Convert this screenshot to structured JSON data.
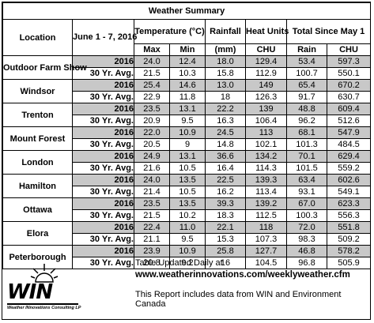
{
  "title": "Weather Summary",
  "headers": {
    "location": "Location",
    "period": "June 1 - 7, 2016",
    "temperature": "Temperature (°C)",
    "rainfall": "Rainfall",
    "heat_units": "Heat Units",
    "total_since": "Total Since May 1",
    "max": "Max",
    "min": "Min",
    "mm": "(mm)",
    "chu": "CHU",
    "rain": "Rain",
    "chu2": "CHU"
  },
  "rows": [
    {
      "location": "Outdoor Farm Show",
      "y2016": {
        "label": "2016",
        "max": "24.0",
        "min": "12.4",
        "rain": "18.0",
        "chu": "129.4",
        "train": "53.4",
        "tchu": "597.3"
      },
      "avg": {
        "label": "30 Yr. Avg.",
        "max": "21.5",
        "min": "10.3",
        "rain": "15.8",
        "chu": "112.9",
        "train": "100.7",
        "tchu": "550.1"
      }
    },
    {
      "location": "Windsor",
      "y2016": {
        "label": "2016",
        "max": "25.4",
        "min": "14.6",
        "rain": "13.0",
        "chu": "149",
        "train": "65.4",
        "tchu": "670.2"
      },
      "avg": {
        "label": "30 Yr. Avg.",
        "max": "22.9",
        "min": "11.8",
        "rain": "18",
        "chu": "126.3",
        "train": "91.7",
        "tchu": "630.7"
      }
    },
    {
      "location": "Trenton",
      "y2016": {
        "label": "2016",
        "max": "23.5",
        "min": "13.1",
        "rain": "22.2",
        "chu": "139",
        "train": "48.8",
        "tchu": "609.4"
      },
      "avg": {
        "label": "30 Yr. Avg.",
        "max": "20.9",
        "min": "9.5",
        "rain": "16.3",
        "chu": "106.4",
        "train": "96.2",
        "tchu": "512.6"
      }
    },
    {
      "location": "Mount Forest",
      "y2016": {
        "label": "2016",
        "max": "22.0",
        "min": "10.9",
        "rain": "24.5",
        "chu": "113",
        "train": "68.1",
        "tchu": "547.9"
      },
      "avg": {
        "label": "30 Yr. Avg.",
        "max": "20.5",
        "min": "9",
        "rain": "14.8",
        "chu": "102.1",
        "train": "101.3",
        "tchu": "484.5"
      }
    },
    {
      "location": "London",
      "y2016": {
        "label": "2016",
        "max": "24.9",
        "min": "13.1",
        "rain": "36.6",
        "chu": "134.2",
        "train": "70.1",
        "tchu": "629.4"
      },
      "avg": {
        "label": "30 Yr. Avg.",
        "max": "21.6",
        "min": "10.5",
        "rain": "16.4",
        "chu": "114.3",
        "train": "101.5",
        "tchu": "559.2"
      }
    },
    {
      "location": "Hamilton",
      "y2016": {
        "label": "2016",
        "max": "24.0",
        "min": "13.5",
        "rain": "22.5",
        "chu": "139.3",
        "train": "63.4",
        "tchu": "602.6"
      },
      "avg": {
        "label": "30 Yr. Avg.",
        "max": "21.4",
        "min": "10.5",
        "rain": "16.2",
        "chu": "113.4",
        "train": "93.1",
        "tchu": "549.1"
      }
    },
    {
      "location": "Ottawa",
      "y2016": {
        "label": "2016",
        "max": "23.5",
        "min": "13.5",
        "rain": "39.3",
        "chu": "139.2",
        "train": "67.0",
        "tchu": "623.3"
      },
      "avg": {
        "label": "30 Yr. Avg.",
        "max": "21.5",
        "min": "10.2",
        "rain": "18.3",
        "chu": "112.5",
        "train": "100.3",
        "tchu": "556.3"
      }
    },
    {
      "location": "Elora",
      "y2016": {
        "label": "2016",
        "max": "22.4",
        "min": "11.0",
        "rain": "22.1",
        "chu": "118",
        "train": "72.0",
        "tchu": "551.8"
      },
      "avg": {
        "label": "30 Yr. Avg.",
        "max": "21.1",
        "min": "9.5",
        "rain": "15.3",
        "chu": "107.3",
        "train": "98.3",
        "tchu": "509.2"
      }
    },
    {
      "location": "Peterborough",
      "y2016": {
        "label": "2016",
        "max": "23.9",
        "min": "10.9",
        "rain": "25.8",
        "chu": "127.7",
        "train": "46.8",
        "tchu": "578.2"
      },
      "avg": {
        "label": "30 Yr. Avg.",
        "max": "20.8",
        "min": "9.2",
        "rain": "16",
        "chu": "104.5",
        "train": "96.8",
        "tchu": "505.9"
      }
    }
  ],
  "footer": {
    "logo_text": "WIN",
    "logo_subtitle": "Weather INnovations Consulting LP",
    "updated": "Table Updated Daily at",
    "url": "www.weatherinnovations.com/weeklyweather.cfm",
    "source": "This Report includes data from WIN and Environment Canada"
  }
}
